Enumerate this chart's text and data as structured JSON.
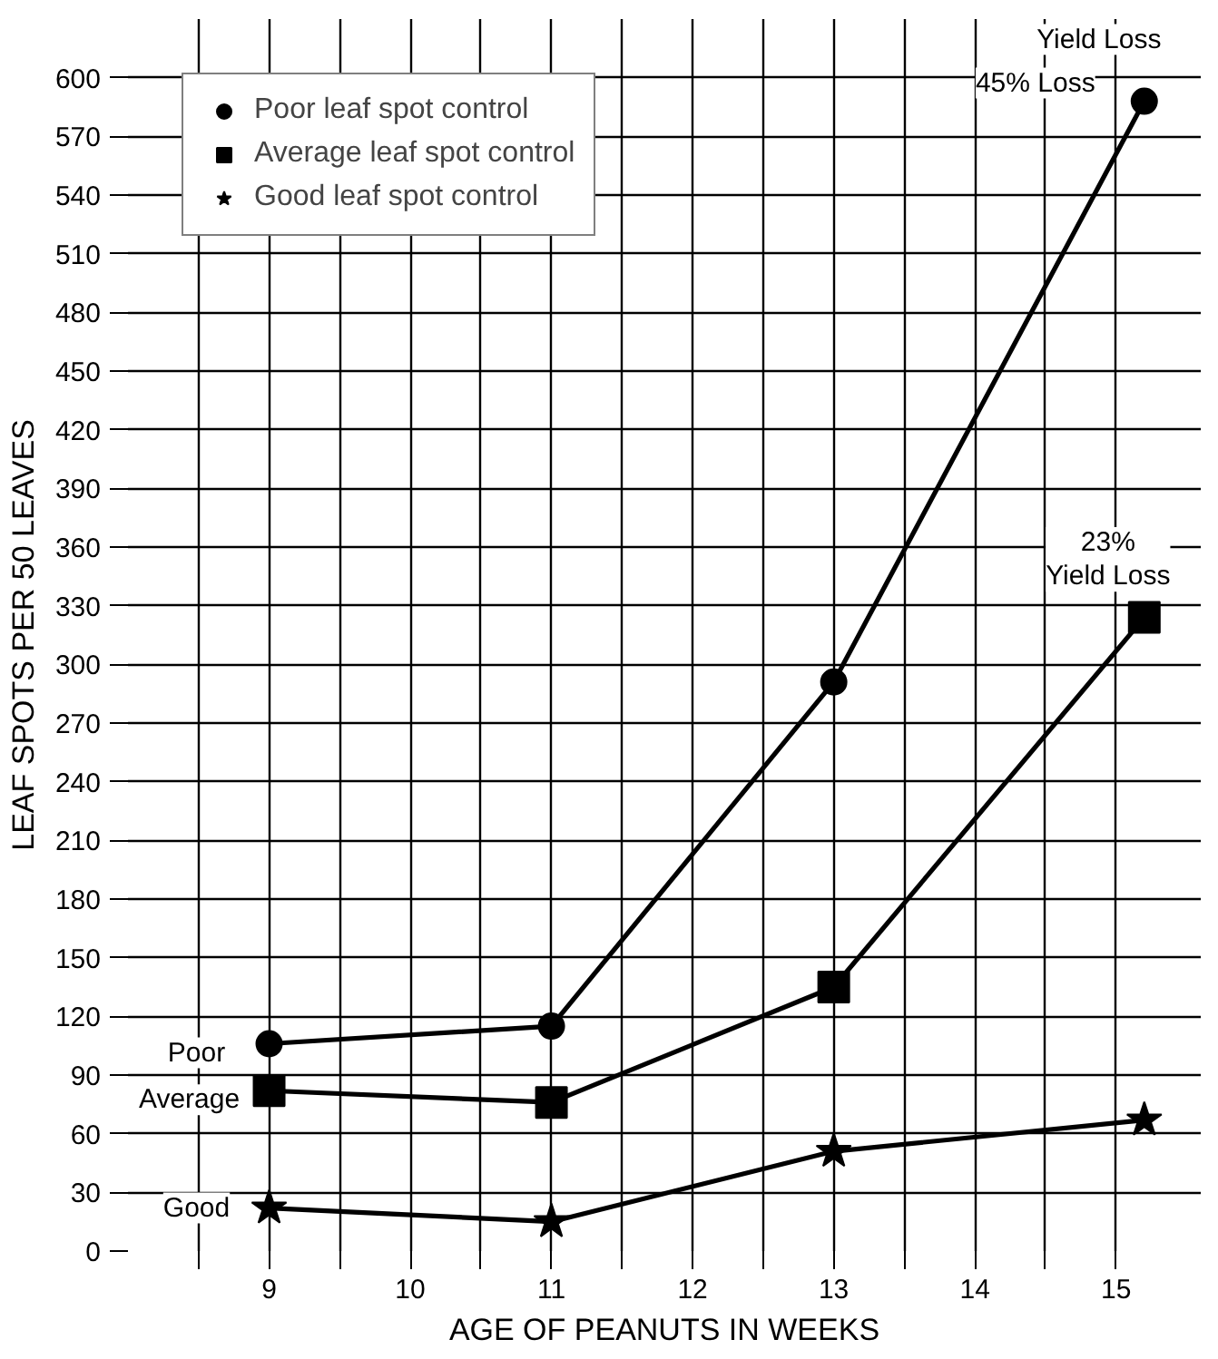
{
  "chart_data": {
    "type": "line",
    "xlabel": "AGE OF PEANUTS IN WEEKS",
    "ylabel": "LEAF SPOTS PER 50 LEAVES",
    "xlim": [
      8,
      15.6
    ],
    "ylim": [
      0,
      630
    ],
    "xticks": [
      {
        "value": 8.5,
        "label": null
      },
      9,
      {
        "value": 9.5,
        "label": null
      },
      10,
      {
        "value": 10.5,
        "label": null
      },
      11,
      {
        "value": 11.5,
        "label": null
      },
      12,
      {
        "value": 12.5,
        "label": null
      },
      13,
      {
        "value": 13.5,
        "label": null
      },
      14,
      {
        "value": 14.5,
        "label": null
      },
      15
    ],
    "yticks": [
      0,
      30,
      60,
      90,
      120,
      150,
      180,
      210,
      240,
      270,
      300,
      330,
      360,
      390,
      420,
      450,
      480,
      510,
      540,
      570,
      600
    ],
    "grid": true,
    "legend": "top left",
    "line_style": "solid",
    "series": [
      {
        "name": "Poor leaf spot control",
        "color": "#000000",
        "marker": "circle",
        "x": [
          9,
          11,
          13,
          15.2
        ],
        "values": [
          106,
          115,
          291,
          588
        ]
      },
      {
        "name": "Average leaf spot control",
        "color": "#000000",
        "marker": "square",
        "x": [
          9,
          11,
          13,
          15.2
        ],
        "values": [
          82,
          76,
          135,
          324
        ]
      },
      {
        "name": "Good leaf spot control",
        "color": "#000000",
        "marker": "star",
        "x": [
          9,
          11,
          13,
          15.2
        ],
        "values": [
          22,
          15,
          51,
          67
        ]
      }
    ],
    "annotations": [
      "Yield Loss",
      "45% Loss",
      "23%\nYield Loss",
      "Poor",
      "Average",
      "Good"
    ]
  }
}
